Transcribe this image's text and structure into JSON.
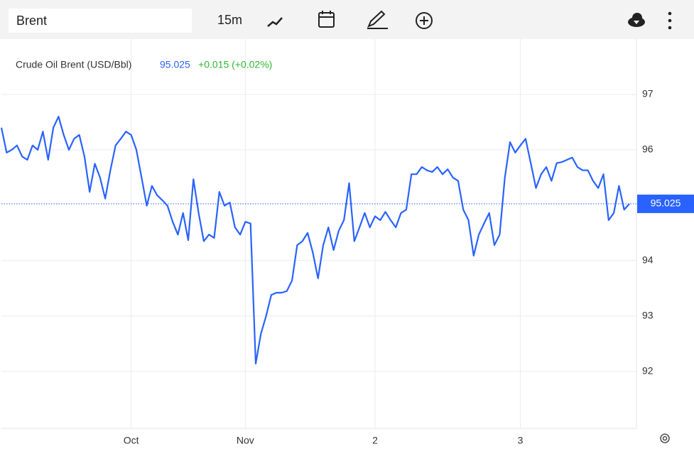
{
  "toolbar": {
    "search": "Brent",
    "interval": "15m"
  },
  "chart_data": {
    "type": "line",
    "title": "Crude Oil Brent (USD/Bbl)",
    "last_value": 95.025,
    "change": "+0.015 (+0.02%)",
    "categories": [
      null,
      null,
      null,
      null,
      null,
      null,
      null,
      null,
      null,
      null,
      null,
      null,
      null,
      null,
      null,
      null,
      null,
      null,
      null,
      null,
      null,
      null,
      null,
      null,
      null,
      "Oct",
      null,
      null,
      null,
      null,
      null,
      null,
      null,
      null,
      null,
      null,
      null,
      null,
      null,
      null,
      null,
      null,
      null,
      null,
      null,
      null,
      null,
      "Nov",
      null,
      null,
      null,
      null,
      null,
      null,
      null,
      null,
      null,
      null,
      null,
      null,
      null,
      null,
      null,
      null,
      null,
      null,
      null,
      null,
      null,
      null,
      null,
      null,
      "2",
      null,
      null,
      null,
      null,
      null,
      null,
      null,
      null,
      null,
      null,
      null,
      null,
      null,
      null,
      null,
      null,
      null,
      null,
      null,
      null,
      null,
      null,
      null,
      null,
      null,
      null,
      null,
      "3",
      null,
      null,
      null,
      null,
      null,
      null,
      null,
      null,
      null,
      null,
      null,
      null,
      null,
      null,
      null,
      null,
      null,
      null,
      null,
      null,
      null
    ],
    "series": [
      {
        "name": "Brent",
        "color": "#2962ff",
        "values": [
          96.4,
          95.95,
          96.0,
          96.08,
          95.88,
          95.82,
          96.08,
          96.0,
          96.33,
          95.82,
          96.4,
          96.6,
          96.27,
          96.0,
          96.2,
          96.27,
          95.88,
          95.24,
          95.75,
          95.5,
          95.12,
          95.63,
          96.08,
          96.2,
          96.33,
          96.27,
          96.0,
          95.5,
          94.99,
          95.35,
          95.18,
          95.09,
          94.99,
          94.7,
          94.47,
          94.86,
          94.37,
          95.47,
          94.86,
          94.35,
          94.47,
          94.41,
          95.24,
          94.99,
          95.05,
          94.6,
          94.47,
          94.7,
          94.67,
          92.14,
          92.68,
          93.0,
          93.38,
          93.42,
          93.42,
          93.45,
          93.64,
          94.28,
          94.35,
          94.5,
          94.15,
          93.68,
          94.28,
          94.6,
          94.19,
          94.54,
          94.73,
          95.4,
          94.35,
          94.6,
          94.86,
          94.6,
          94.8,
          94.73,
          94.88,
          94.73,
          94.6,
          94.86,
          94.92,
          95.56,
          95.56,
          95.69,
          95.63,
          95.6,
          95.69,
          95.56,
          95.65,
          95.5,
          95.44,
          94.92,
          94.73,
          94.09,
          94.47,
          94.67,
          94.86,
          94.28,
          94.47,
          95.5,
          96.14,
          95.95,
          96.08,
          96.2,
          95.76,
          95.31,
          95.56,
          95.69,
          95.44,
          95.76,
          95.78,
          95.82,
          95.86,
          95.69,
          95.63,
          95.63,
          95.44,
          95.31,
          95.56,
          94.73,
          94.86,
          95.35,
          94.92,
          95.025
        ]
      }
    ],
    "ylim": [
      90.97,
      98.0
    ],
    "yticks": [
      92,
      93,
      94,
      96,
      97
    ],
    "grid": true
  }
}
